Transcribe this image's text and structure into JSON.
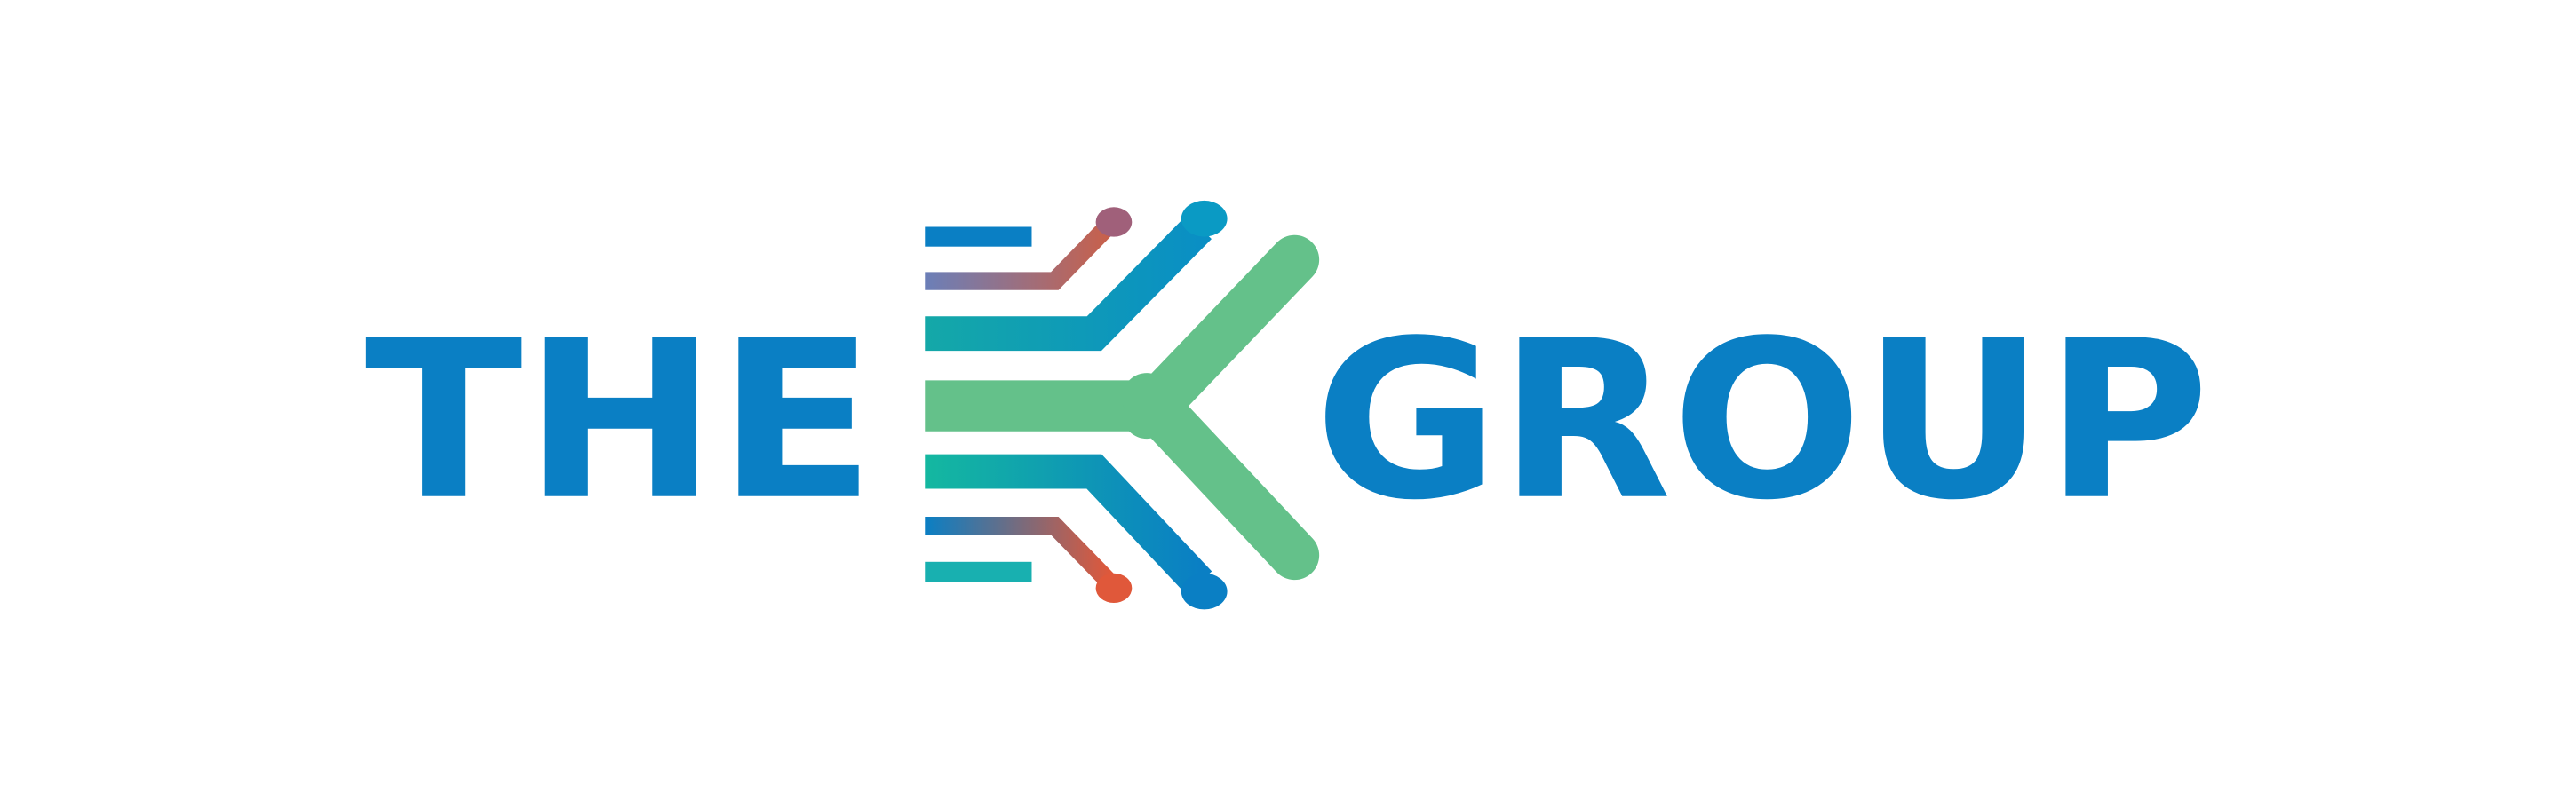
{
  "logo": {
    "text_left": "THE",
    "text_right": "GROUP"
  }
}
